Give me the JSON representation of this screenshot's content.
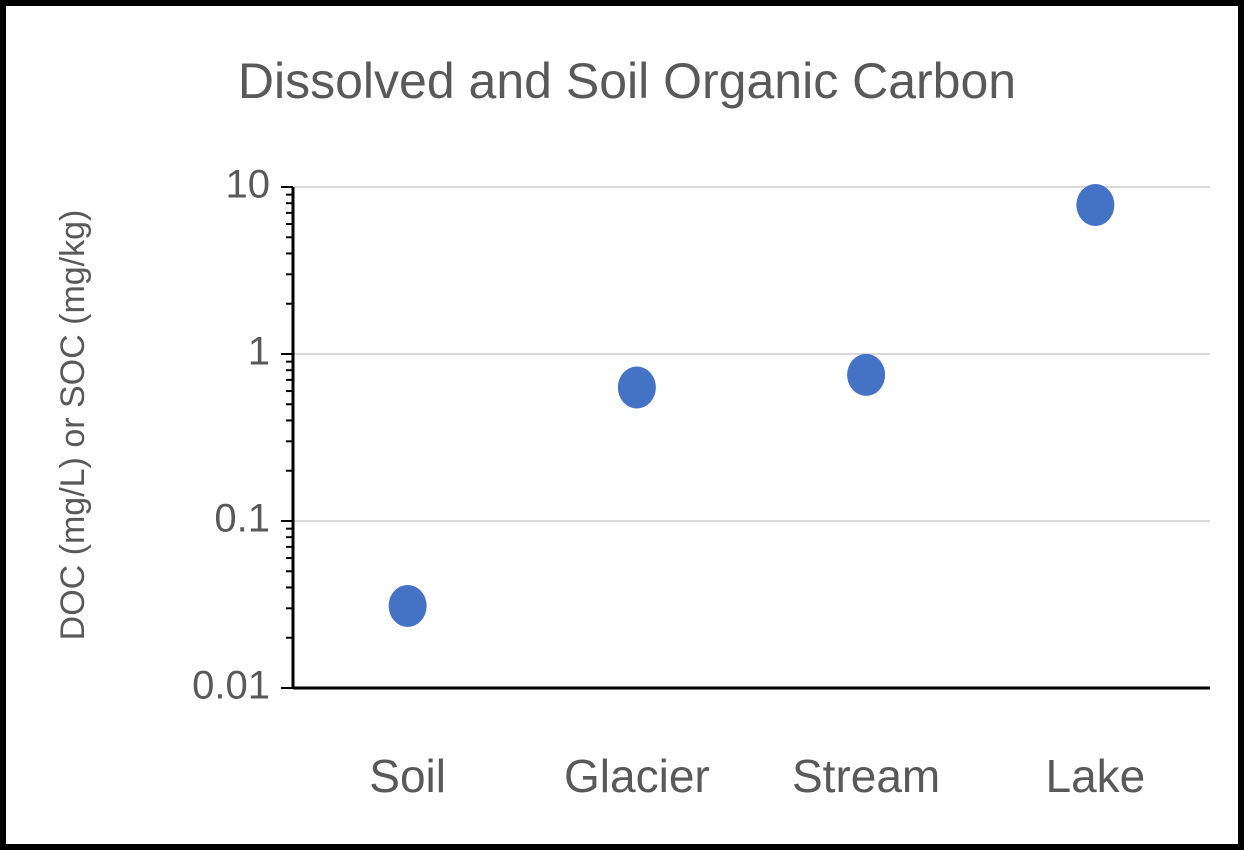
{
  "chart_data": {
    "type": "scatter",
    "title": "Dissolved and Soil Organic Carbon",
    "y_label": "DOC (mg/L) or SOC (mg/kg)",
    "categories": [
      "Soil",
      "Glacier",
      "Stream",
      "Lake"
    ],
    "values": [
      0.031,
      0.63,
      0.75,
      7.8
    ],
    "color": "#4472c4",
    "ylim": [
      0.01,
      10
    ],
    "yticks": [
      0.01,
      0.1,
      1,
      10
    ],
    "log_scale": true,
    "grid": true
  }
}
